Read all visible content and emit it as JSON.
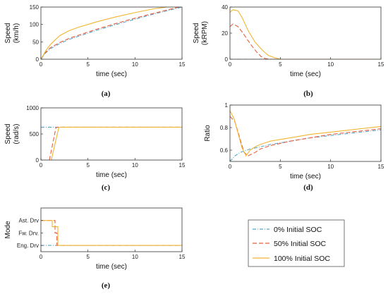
{
  "series_styles": [
    {
      "color": "#5aa4c8",
      "dash": "5,2,1,2"
    },
    {
      "color": "#e8603c",
      "dash": "6,3"
    },
    {
      "color": "#f2b531",
      "dash": ""
    }
  ],
  "legend": {
    "entries": [
      "0% Initial SOC",
      "50% Initial SOC",
      "100% Initial SOC"
    ]
  },
  "chart_data": [
    {
      "id": "a",
      "type": "line",
      "caption": "(a)",
      "xlabel": "time (sec)",
      "ylabel": [
        "Speed",
        "(km/h)"
      ],
      "xlim": [
        0,
        15
      ],
      "ylim": [
        0,
        150
      ],
      "xticks": [
        0,
        5,
        10,
        15
      ],
      "xtick_labels": [
        "0",
        "5",
        "10",
        "15"
      ],
      "yticks": [
        0,
        50,
        100,
        150
      ],
      "ytick_labels": [
        "0",
        "50",
        "100",
        "150"
      ],
      "step": false,
      "series": [
        {
          "x": [
            0,
            0.5,
            1,
            2,
            3,
            4,
            5,
            6,
            8,
            10,
            12,
            15
          ],
          "y": [
            0,
            18,
            30,
            45,
            57,
            66,
            75,
            84,
            100,
            115,
            130,
            150
          ]
        },
        {
          "x": [
            0,
            0.5,
            1,
            2,
            3,
            4,
            5,
            6,
            8,
            10,
            12,
            15
          ],
          "y": [
            0,
            20,
            33,
            48,
            60,
            69,
            78,
            87,
            103,
            118,
            132,
            152
          ]
        },
        {
          "x": [
            0,
            0.5,
            1,
            2,
            3,
            4,
            5,
            6,
            8,
            10,
            12,
            15
          ],
          "y": [
            0,
            24,
            42,
            68,
            82,
            92,
            100,
            108,
            122,
            134,
            145,
            156
          ]
        }
      ]
    },
    {
      "id": "b",
      "type": "line",
      "caption": "(b)",
      "xlabel": "time (sec)",
      "ylabel": [
        "Speed",
        "(kRPM)"
      ],
      "xlim": [
        0,
        15
      ],
      "ylim": [
        0,
        40
      ],
      "xticks": [
        0,
        5,
        10,
        15
      ],
      "xtick_labels": [
        "0",
        "5",
        "10",
        "15"
      ],
      "yticks": [
        0,
        20,
        40
      ],
      "ytick_labels": [
        "0",
        "20",
        "40"
      ],
      "step": false,
      "series": [
        {
          "x": [
            0,
            15
          ],
          "y": [
            0,
            0
          ]
        },
        {
          "x": [
            0,
            0.3,
            0.8,
            1.3,
            2,
            2.6,
            3.1,
            3.5,
            4,
            15
          ],
          "y": [
            25,
            27,
            25,
            20,
            12,
            6,
            2,
            0.5,
            0,
            0
          ]
        },
        {
          "x": [
            0,
            0.3,
            0.8,
            1.2,
            1.8,
            2.5,
            3.2,
            3.8,
            4.5,
            5,
            15
          ],
          "y": [
            36,
            38,
            37,
            32,
            22,
            13,
            7,
            3,
            1,
            0,
            0
          ]
        }
      ]
    },
    {
      "id": "c",
      "type": "line",
      "caption": "(c)",
      "xlabel": "time (sec)",
      "ylabel": [
        "Speed",
        "(rad/s)"
      ],
      "xlim": [
        0,
        15
      ],
      "ylim": [
        0,
        1000
      ],
      "xticks": [
        0,
        5,
        10,
        15
      ],
      "xtick_labels": [
        "0",
        "5",
        "10",
        "15"
      ],
      "yticks": [
        0,
        500,
        1000
      ],
      "ytick_labels": [
        "0",
        "500",
        "1000"
      ],
      "step": false,
      "series": [
        {
          "x": [
            0,
            15
          ],
          "y": [
            630,
            630
          ]
        },
        {
          "x": [
            0.9,
            1.6,
            1.8,
            15
          ],
          "y": [
            0,
            620,
            630,
            630
          ]
        },
        {
          "x": [
            1.1,
            1.9,
            2.1,
            15
          ],
          "y": [
            0,
            620,
            630,
            630
          ]
        }
      ]
    },
    {
      "id": "d",
      "type": "line",
      "caption": "(d)",
      "xlabel": "time (sec)",
      "ylabel": [
        "Ratio"
      ],
      "xlim": [
        0,
        15
      ],
      "ylim": [
        0.5,
        1.0
      ],
      "xticks": [
        0,
        5,
        10,
        15
      ],
      "xtick_labels": [
        "0",
        "5",
        "10",
        "15"
      ],
      "yticks": [
        0.6,
        0.8,
        1.0
      ],
      "ytick_labels": [
        "0.6",
        "0.8",
        "1"
      ],
      "step": false,
      "series": [
        {
          "x": [
            0,
            0.5,
            1,
            2,
            3,
            4,
            6,
            8,
            10,
            12,
            15
          ],
          "y": [
            0.5,
            0.55,
            0.58,
            0.61,
            0.63,
            0.65,
            0.68,
            0.71,
            0.73,
            0.75,
            0.78
          ]
        },
        {
          "x": [
            0,
            0.5,
            1,
            1.4,
            1.8,
            2.5,
            3,
            4,
            6,
            8,
            10,
            12,
            15
          ],
          "y": [
            0.9,
            0.85,
            0.7,
            0.58,
            0.55,
            0.58,
            0.61,
            0.64,
            0.68,
            0.71,
            0.74,
            0.76,
            0.79
          ]
        },
        {
          "x": [
            0,
            0.4,
            0.8,
            1.2,
            1.6,
            2,
            2.5,
            3,
            4,
            6,
            8,
            10,
            12,
            15
          ],
          "y": [
            0.95,
            0.88,
            0.75,
            0.62,
            0.55,
            0.6,
            0.63,
            0.65,
            0.68,
            0.71,
            0.74,
            0.76,
            0.78,
            0.81
          ]
        }
      ]
    },
    {
      "id": "e",
      "type": "line",
      "caption": "(e)",
      "xlabel": "time (sec)",
      "ylabel": [
        "Mode"
      ],
      "xlim": [
        0,
        15
      ],
      "ylim": [
        -0.5,
        3.0
      ],
      "xticks": [
        0,
        5,
        10,
        15
      ],
      "xtick_labels": [
        "0",
        "5",
        "10",
        "15"
      ],
      "yticks": [
        0,
        1,
        2
      ],
      "ytick_labels": [
        "Eng. Drv",
        "Fw. Drv.",
        "Ast. Drv"
      ],
      "step": true,
      "series": [
        {
          "x": [
            0,
            15
          ],
          "y": [
            0,
            0
          ]
        },
        {
          "x": [
            0,
            1.5,
            1.5,
            1.7,
            1.7,
            15
          ],
          "y": [
            2,
            2,
            1,
            1,
            0,
            0
          ]
        },
        {
          "x": [
            0,
            1.2,
            1.2,
            1.8,
            1.8,
            15
          ],
          "y": [
            2,
            2,
            1.5,
            1.5,
            0,
            0
          ]
        }
      ]
    }
  ]
}
